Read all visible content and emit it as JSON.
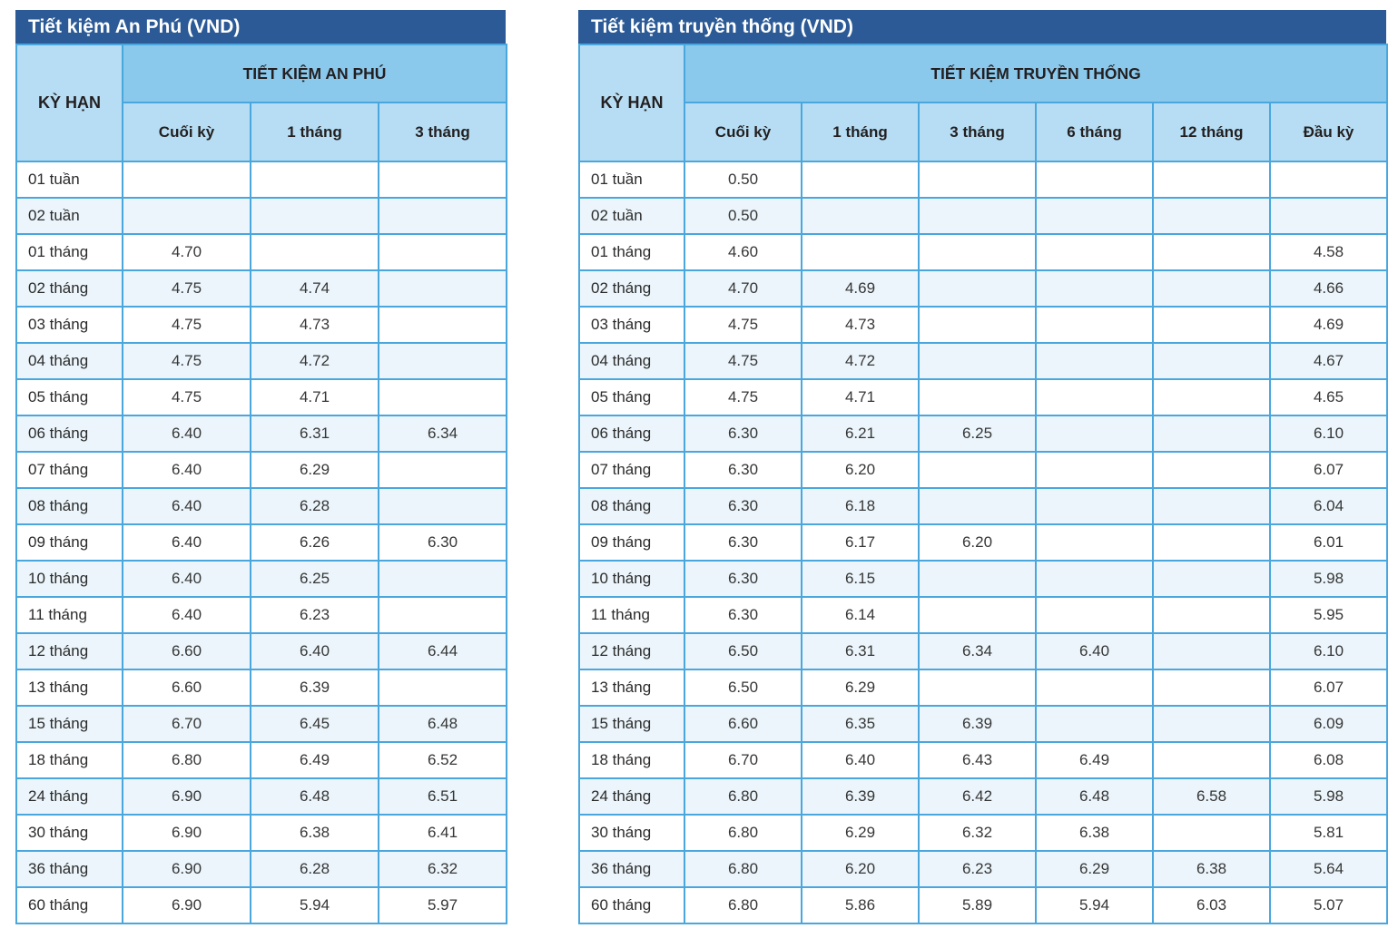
{
  "colors": {
    "title-bar": "#2B5A96",
    "band": "#8AC8EC",
    "subheader": "#B6DDF3",
    "stripe": "#EBF5FB",
    "border": "#4AA7DE",
    "header-text": "#231F20",
    "data-text": "#363636"
  },
  "left_table": {
    "title": "Tiết kiệm An Phú (VND)",
    "corner_header": "KỲ HẠN",
    "group_header": "TIẾT KIỆM AN PHÚ",
    "columns": [
      "Cuối kỳ",
      "1 tháng",
      "3 tháng"
    ],
    "rows": [
      {
        "label": "01 tuần",
        "values": [
          "",
          "",
          ""
        ]
      },
      {
        "label": "02 tuần",
        "values": [
          "",
          "",
          ""
        ]
      },
      {
        "label": "01 tháng",
        "values": [
          "4.70",
          "",
          ""
        ]
      },
      {
        "label": "02 tháng",
        "values": [
          "4.75",
          "4.74",
          ""
        ]
      },
      {
        "label": "03 tháng",
        "values": [
          "4.75",
          "4.73",
          ""
        ]
      },
      {
        "label": "04 tháng",
        "values": [
          "4.75",
          "4.72",
          ""
        ]
      },
      {
        "label": "05 tháng",
        "values": [
          "4.75",
          "4.71",
          ""
        ]
      },
      {
        "label": "06 tháng",
        "values": [
          "6.40",
          "6.31",
          "6.34"
        ]
      },
      {
        "label": "07 tháng",
        "values": [
          "6.40",
          "6.29",
          ""
        ]
      },
      {
        "label": "08 tháng",
        "values": [
          "6.40",
          "6.28",
          ""
        ]
      },
      {
        "label": "09 tháng",
        "values": [
          "6.40",
          "6.26",
          "6.30"
        ]
      },
      {
        "label": "10 tháng",
        "values": [
          "6.40",
          "6.25",
          ""
        ]
      },
      {
        "label": "11 tháng",
        "values": [
          "6.40",
          "6.23",
          ""
        ]
      },
      {
        "label": "12 tháng",
        "values": [
          "6.60",
          "6.40",
          "6.44"
        ]
      },
      {
        "label": "13 tháng",
        "values": [
          "6.60",
          "6.39",
          ""
        ]
      },
      {
        "label": "15 tháng",
        "values": [
          "6.70",
          "6.45",
          "6.48"
        ]
      },
      {
        "label": "18 tháng",
        "values": [
          "6.80",
          "6.49",
          "6.52"
        ]
      },
      {
        "label": "24 tháng",
        "values": [
          "6.90",
          "6.48",
          "6.51"
        ]
      },
      {
        "label": "30 tháng",
        "values": [
          "6.90",
          "6.38",
          "6.41"
        ]
      },
      {
        "label": "36 tháng",
        "values": [
          "6.90",
          "6.28",
          "6.32"
        ]
      },
      {
        "label": "60 tháng",
        "values": [
          "6.90",
          "5.94",
          "5.97"
        ]
      }
    ]
  },
  "right_table": {
    "title": "Tiết kiệm truyền thống (VND)",
    "corner_header": "KỲ HẠN",
    "group_header": "TIẾT KIỆM TRUYỀN THỐNG",
    "columns": [
      "Cuối kỳ",
      "1 tháng",
      "3 tháng",
      "6 tháng",
      "12 tháng",
      "Đầu kỳ"
    ],
    "rows": [
      {
        "label": "01 tuần",
        "values": [
          "0.50",
          "",
          "",
          "",
          "",
          ""
        ]
      },
      {
        "label": "02 tuần",
        "values": [
          "0.50",
          "",
          "",
          "",
          "",
          ""
        ]
      },
      {
        "label": "01 tháng",
        "values": [
          "4.60",
          "",
          "",
          "",
          "",
          "4.58"
        ]
      },
      {
        "label": "02 tháng",
        "values": [
          "4.70",
          "4.69",
          "",
          "",
          "",
          "4.66"
        ]
      },
      {
        "label": "03 tháng",
        "values": [
          "4.75",
          "4.73",
          "",
          "",
          "",
          "4.69"
        ]
      },
      {
        "label": "04 tháng",
        "values": [
          "4.75",
          "4.72",
          "",
          "",
          "",
          "4.67"
        ]
      },
      {
        "label": "05 tháng",
        "values": [
          "4.75",
          "4.71",
          "",
          "",
          "",
          "4.65"
        ]
      },
      {
        "label": "06 tháng",
        "values": [
          "6.30",
          "6.21",
          "6.25",
          "",
          "",
          "6.10"
        ]
      },
      {
        "label": "07 tháng",
        "values": [
          "6.30",
          "6.20",
          "",
          "",
          "",
          "6.07"
        ]
      },
      {
        "label": "08 tháng",
        "values": [
          "6.30",
          "6.18",
          "",
          "",
          "",
          "6.04"
        ]
      },
      {
        "label": "09 tháng",
        "values": [
          "6.30",
          "6.17",
          "6.20",
          "",
          "",
          "6.01"
        ]
      },
      {
        "label": "10 tháng",
        "values": [
          "6.30",
          "6.15",
          "",
          "",
          "",
          "5.98"
        ]
      },
      {
        "label": "11 tháng",
        "values": [
          "6.30",
          "6.14",
          "",
          "",
          "",
          "5.95"
        ]
      },
      {
        "label": "12 tháng",
        "values": [
          "6.50",
          "6.31",
          "6.34",
          "6.40",
          "",
          "6.10"
        ]
      },
      {
        "label": "13 tháng",
        "values": [
          "6.50",
          "6.29",
          "",
          "",
          "",
          "6.07"
        ]
      },
      {
        "label": "15 tháng",
        "values": [
          "6.60",
          "6.35",
          "6.39",
          "",
          "",
          "6.09"
        ]
      },
      {
        "label": "18 tháng",
        "values": [
          "6.70",
          "6.40",
          "6.43",
          "6.49",
          "",
          "6.08"
        ]
      },
      {
        "label": "24 tháng",
        "values": [
          "6.80",
          "6.39",
          "6.42",
          "6.48",
          "6.58",
          "5.98"
        ]
      },
      {
        "label": "30 tháng",
        "values": [
          "6.80",
          "6.29",
          "6.32",
          "6.38",
          "",
          "5.81"
        ]
      },
      {
        "label": "36 tháng",
        "values": [
          "6.80",
          "6.20",
          "6.23",
          "6.29",
          "6.38",
          "5.64"
        ]
      },
      {
        "label": "60 tháng",
        "values": [
          "6.80",
          "5.86",
          "5.89",
          "5.94",
          "6.03",
          "5.07"
        ]
      }
    ]
  }
}
